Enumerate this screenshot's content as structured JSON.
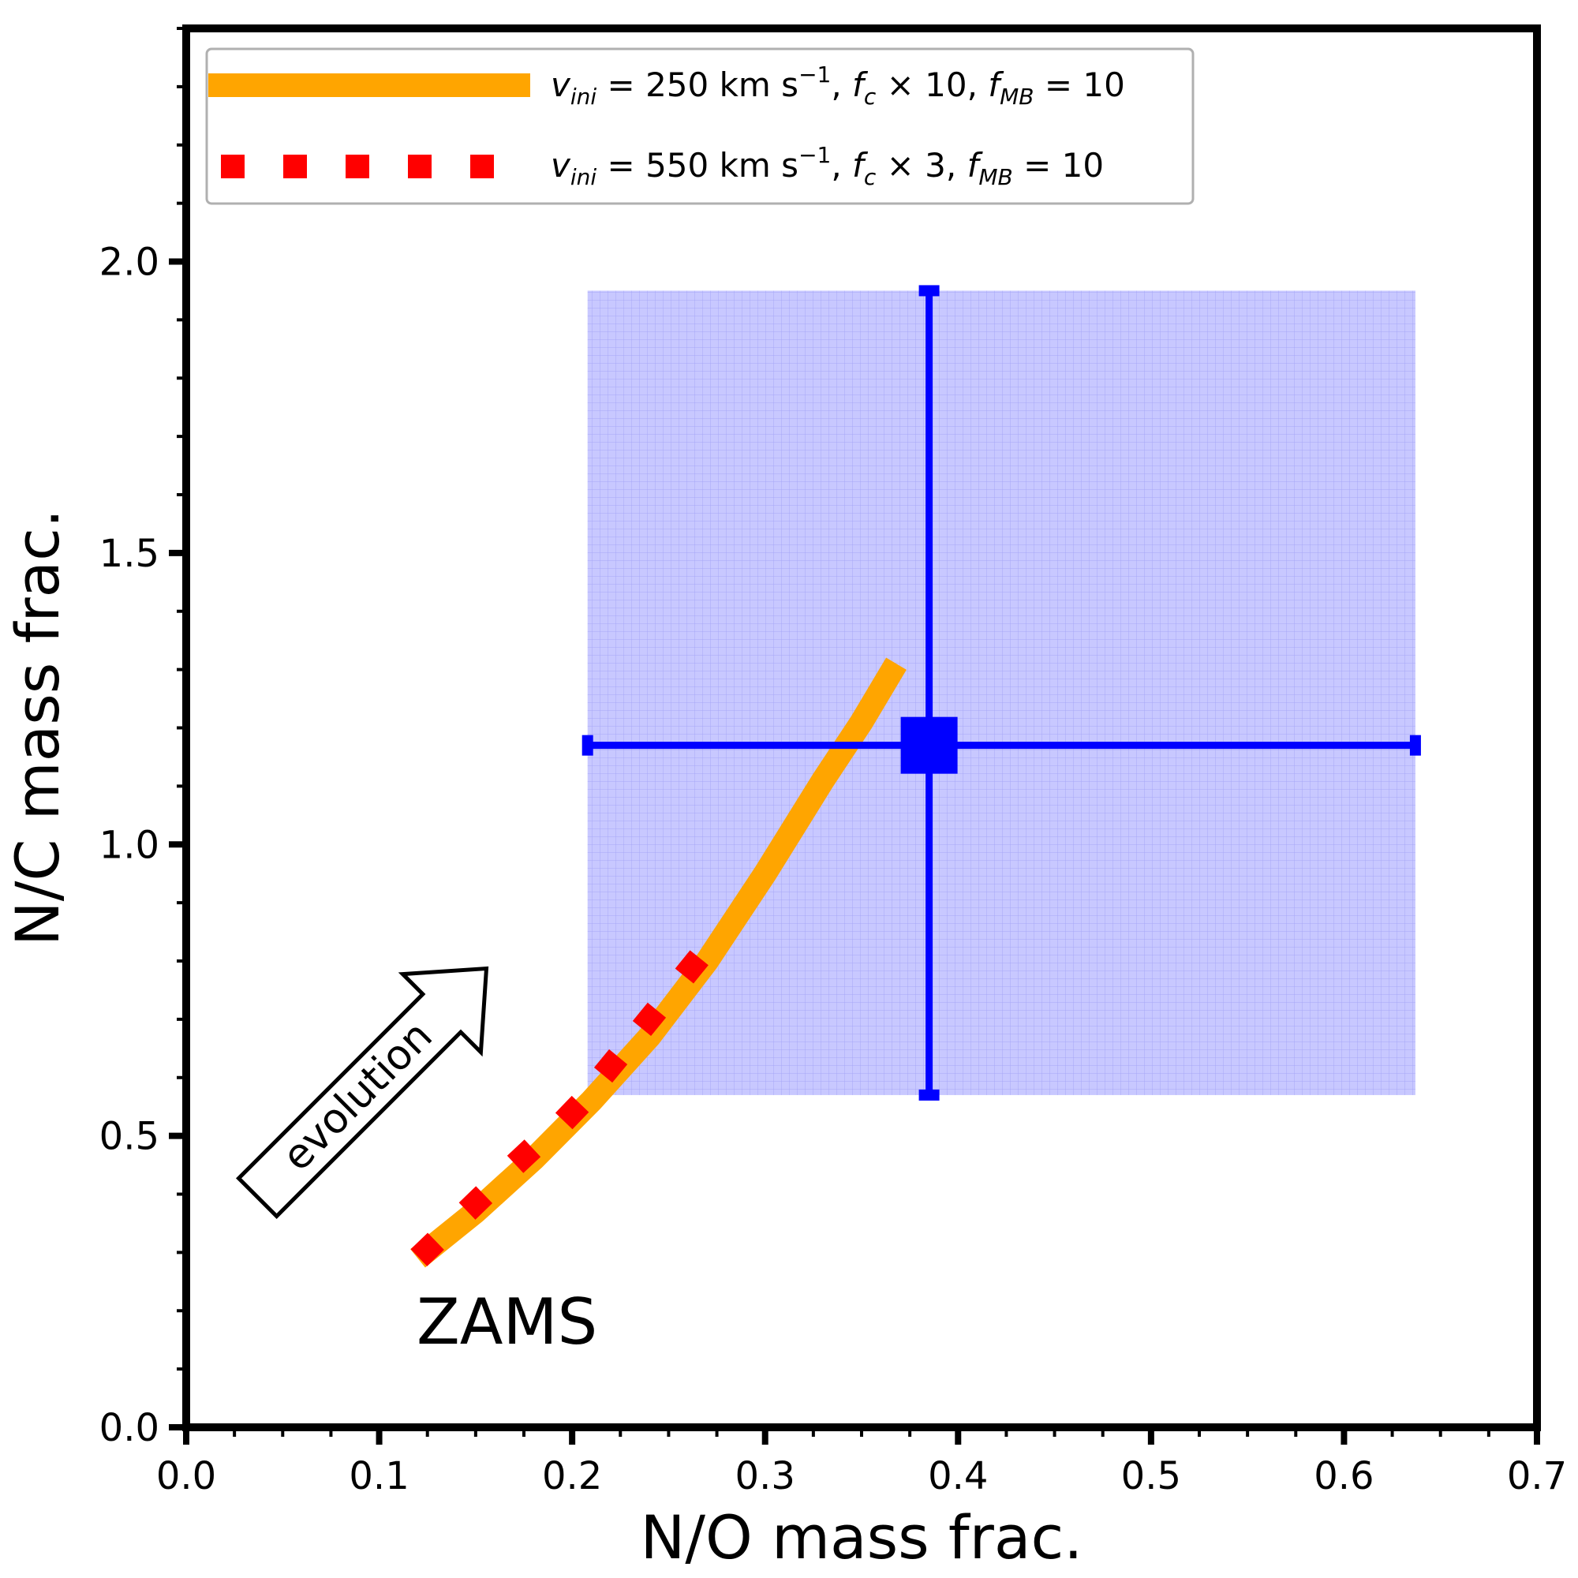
{
  "chart_data": {
    "type": "line",
    "xlabel": "N/O mass frac.",
    "ylabel": "N/C mass frac.",
    "xlim": [
      0.0,
      0.7
    ],
    "ylim": [
      0.0,
      2.4
    ],
    "xticks": [
      "0.0",
      "0.1",
      "0.2",
      "0.3",
      "0.4",
      "0.5",
      "0.6",
      "0.7"
    ],
    "yticks": [
      "0.0",
      "0.5",
      "1.0",
      "1.5",
      "2.0"
    ],
    "legend_position": "top-left",
    "series": [
      {
        "name": "v_ini = 250 km s^-1, f_c × 10, f_MB = 10",
        "style": "solid",
        "color": "#FFA500",
        "x": [
          0.12,
          0.15,
          0.18,
          0.21,
          0.24,
          0.27,
          0.3,
          0.33,
          0.35,
          0.368
        ],
        "y": [
          0.29,
          0.37,
          0.46,
          0.56,
          0.67,
          0.8,
          0.95,
          1.11,
          1.21,
          1.31
        ]
      },
      {
        "name": "v_ini = 550 km s^-1, f_c × 3, f_MB = 10",
        "style": "dotted",
        "color": "#FF0000",
        "x": [
          0.125,
          0.15,
          0.175,
          0.2,
          0.22,
          0.24,
          0.262
        ],
        "y": [
          0.305,
          0.385,
          0.465,
          0.54,
          0.62,
          0.7,
          0.79
        ]
      }
    ],
    "observation": {
      "x": 0.385,
      "y": 1.17,
      "x_range": [
        0.208,
        0.637
      ],
      "y_range": [
        0.57,
        1.95
      ],
      "color": "#0000FF"
    },
    "annotations": {
      "zams": "ZAMS",
      "evolution": "evolution"
    }
  }
}
